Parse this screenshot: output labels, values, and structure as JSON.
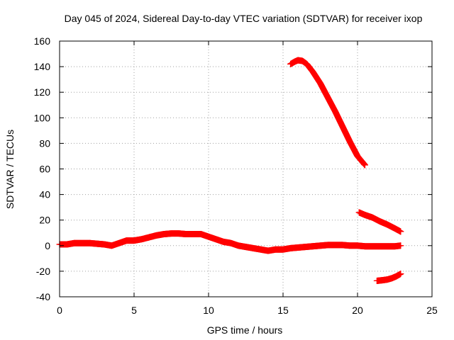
{
  "chart_data": {
    "type": "scatter",
    "title": "Day 045 of 2024, Sidereal Day-to-day VTEC variation (SDTVAR) for receiver ixop",
    "xlabel": "GPS time / hours",
    "ylabel": "SDTVAR / TECUs",
    "xlim": [
      0,
      25
    ],
    "ylim": [
      -40,
      160
    ],
    "xticks": [
      "0",
      "5",
      "10",
      "15",
      "20",
      "25"
    ],
    "yticks": [
      "-40",
      "-20",
      "0",
      "20",
      "40",
      "60",
      "80",
      "100",
      "120",
      "140",
      "160"
    ],
    "grid": true,
    "marker_color": "#ff0000",
    "series": [
      {
        "x": [
          0,
          0.5,
          1,
          1.5,
          2,
          2.5,
          3,
          3.5,
          4,
          4.5,
          5,
          5.5,
          6,
          6.5,
          7,
          7.5,
          8,
          8.5,
          9,
          9.5,
          10,
          10.5,
          11,
          11.5,
          12,
          12.5,
          13,
          13.5,
          14,
          14.5,
          15,
          15.5,
          16,
          16.5,
          17,
          17.5,
          18,
          18.5,
          19,
          19.5,
          20,
          20.5,
          21,
          21.5,
          22,
          22.5,
          22.9
        ],
        "y": [
          1,
          1,
          2,
          2,
          2,
          1.5,
          1,
          0,
          2,
          4,
          4,
          5,
          6.5,
          8,
          9,
          9.5,
          9.5,
          9,
          9,
          9,
          7,
          5,
          3,
          2,
          0,
          -1,
          -2,
          -3,
          -4,
          -3,
          -3,
          -2,
          -1.5,
          -1,
          -0.5,
          0,
          0.5,
          0.5,
          0.5,
          0,
          0,
          -0.5,
          -0.5,
          -0.5,
          -0.5,
          -0.5,
          0
        ]
      },
      {
        "x": [
          15.5,
          15.8,
          16,
          16.3,
          16.6,
          17,
          17.5,
          18,
          18.5,
          19,
          19.5,
          20,
          20.5
        ],
        "y": [
          142,
          144,
          145,
          144.5,
          142,
          136,
          127,
          116,
          105,
          93,
          81,
          70,
          63
        ]
      },
      {
        "x": [
          20.1,
          20.5,
          21,
          21.5,
          22,
          22.5,
          22.9
        ],
        "y": [
          26,
          24,
          22,
          19,
          16.5,
          13.5,
          11
        ]
      },
      {
        "x": [
          21.3,
          21.7,
          22,
          22.3,
          22.6,
          22.9
        ],
        "y": [
          -27.5,
          -27,
          -26.5,
          -25.5,
          -24,
          -22
        ]
      }
    ]
  }
}
